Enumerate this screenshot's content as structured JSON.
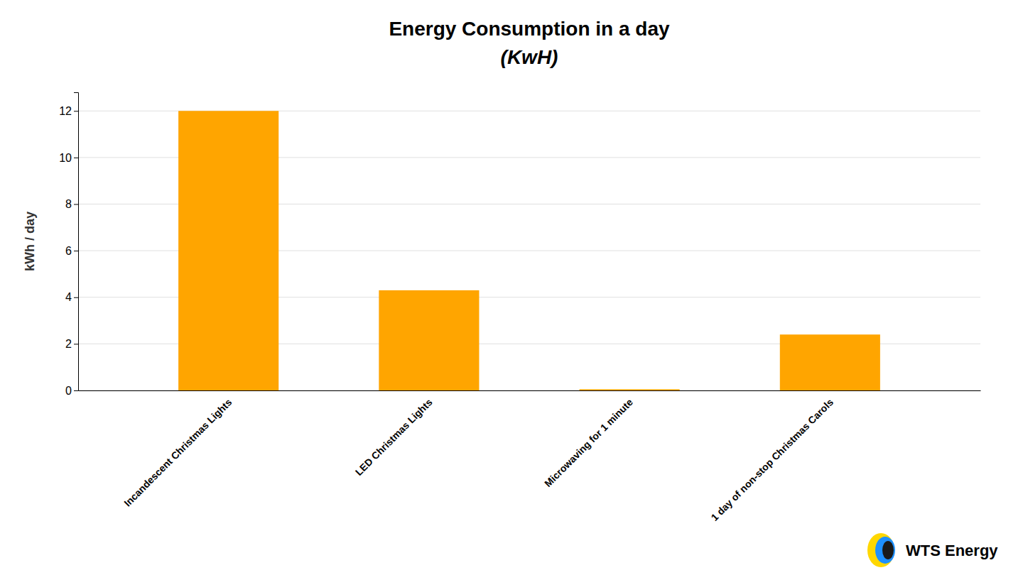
{
  "chart_data": {
    "type": "bar",
    "title": "Energy Consumption in  a day",
    "subtitle": "(KwH)",
    "ylabel": "kWh / day",
    "categories": [
      "Incandescent Christmas Lights",
      "LED Christmas Lights",
      "Microwaving for 1 minute",
      "1 day of non-stop Christmas Carols"
    ],
    "values": [
      12.0,
      4.3,
      0.05,
      2.4
    ],
    "color": "#FFA500",
    "ylim": [
      0,
      12.8
    ],
    "yticks": [
      0,
      2,
      4,
      6,
      8,
      10,
      12
    ],
    "grid": true,
    "annotations": [
      "WTS Energy"
    ]
  }
}
